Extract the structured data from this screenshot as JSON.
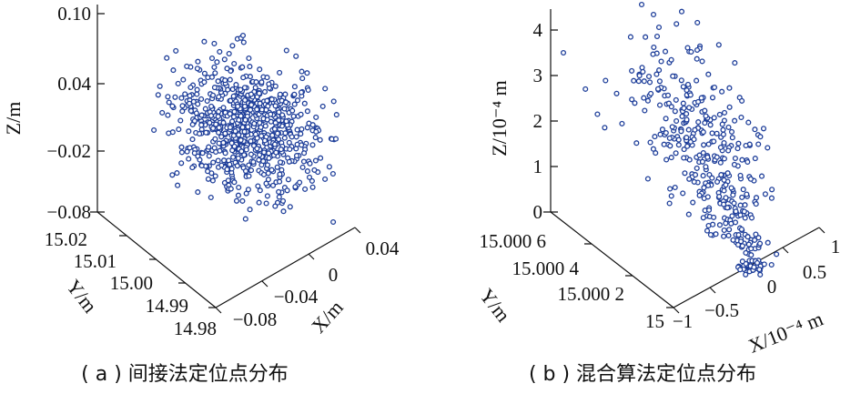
{
  "chart_data": [
    {
      "type": "scatter",
      "dimensions": 3,
      "caption": "( a ) 间接法定位点分布",
      "axes": {
        "x": {
          "label": "X/m",
          "ticks": [
            "−0.08",
            "−0.04",
            "0",
            "0.04"
          ],
          "range": [
            -0.08,
            0.04
          ]
        },
        "y": {
          "label": "Y/m",
          "ticks": [
            "15.02",
            "15.01",
            "15.00",
            "14.99",
            "14.98"
          ],
          "range": [
            14.98,
            15.02
          ]
        },
        "z": {
          "label": "Z/m",
          "ticks": [
            "0.10",
            "0.04",
            "−0.02",
            "−0.08"
          ],
          "range": [
            -0.08,
            0.1
          ]
        }
      },
      "point_count": 800,
      "point_color": "#1f3f9a",
      "grid": false,
      "distribution": "dense cloud centered near X≈−0.02 m, Y≈15.00 m, Z≈0.03 m"
    },
    {
      "type": "scatter",
      "dimensions": 3,
      "caption": "( b ) 混合算法定位点分布",
      "axes": {
        "x": {
          "label": "X/10⁻⁴ m",
          "ticks": [
            "−1",
            "−0.5",
            "0",
            "0.5",
            "1"
          ],
          "range": [
            -1,
            1
          ]
        },
        "y": {
          "label": "Y/m",
          "ticks": [
            "15.000 6",
            "15.000 4",
            "15.000 2",
            "15"
          ],
          "range": [
            15.0,
            15.0006
          ]
        },
        "z": {
          "label": "Z/10⁻⁴ m",
          "ticks": [
            "4",
            "3",
            "2",
            "1",
            "0"
          ],
          "range": [
            0,
            4
          ]
        }
      },
      "point_count": 380,
      "point_color": "#1f3f9a",
      "grid": false,
      "distribution": "elongated cloud tapering toward origin, Z from 0 to ≈4.5×10⁻⁴ m"
    }
  ]
}
